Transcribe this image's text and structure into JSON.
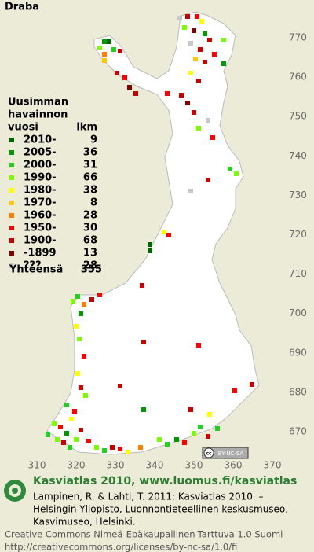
{
  "header": {
    "title": "Draba"
  },
  "legend": {
    "heading": [
      "Uusimman",
      "havainnon"
    ],
    "column_labels": [
      "vuosi",
      "lkm"
    ],
    "rows": [
      {
        "label": "2010-",
        "count": 9,
        "color": "#006400"
      },
      {
        "label": "2005-",
        "count": 36,
        "color": "#009a00"
      },
      {
        "label": "2000-",
        "count": 31,
        "color": "#22d022"
      },
      {
        "label": "1990-",
        "count": 66,
        "color": "#7cfc00"
      },
      {
        "label": "1980-",
        "count": 38,
        "color": "#ffff00"
      },
      {
        "label": "1970-",
        "count": 8,
        "color": "#ffc800"
      },
      {
        "label": "1960-",
        "count": 28,
        "color": "#ff8000"
      },
      {
        "label": "1950-",
        "count": 30,
        "color": "#ff0000"
      },
      {
        "label": "1900-",
        "count": 68,
        "color": "#c80000"
      },
      {
        "label": "-1899",
        "count": 13,
        "color": "#800000"
      },
      {
        "label": "???",
        "count": 28,
        "color": "#c8c8c8"
      }
    ],
    "total_label": "Yhteensä",
    "total": 355
  },
  "axes": {
    "y_labels": [
      770,
      760,
      750,
      740,
      730,
      720,
      710,
      700,
      690,
      680,
      670
    ],
    "x_labels": [
      310,
      320,
      330,
      340,
      350,
      360,
      370
    ]
  },
  "badge": {
    "icon": "cc",
    "text": "BY-NC-SA"
  },
  "footer": {
    "site": "Kasviatlas 2010, www.luomus.fi/kasviatlas",
    "citation": [
      "Lampinen, R. & Lahti, T. 2011: Kasviatlas 2010. –",
      "Helsingin Yliopisto, Luonnontieteellinen keskusmuseo,",
      "Kasvimuseo, Helsinki."
    ],
    "license": [
      "Creative Commons Nimeä-Epäkaupallinen-Tarttuva 1.0 Suomi",
      "http://creativecommons.org/licenses/by-nc-sa/1.0/fi"
    ]
  }
}
